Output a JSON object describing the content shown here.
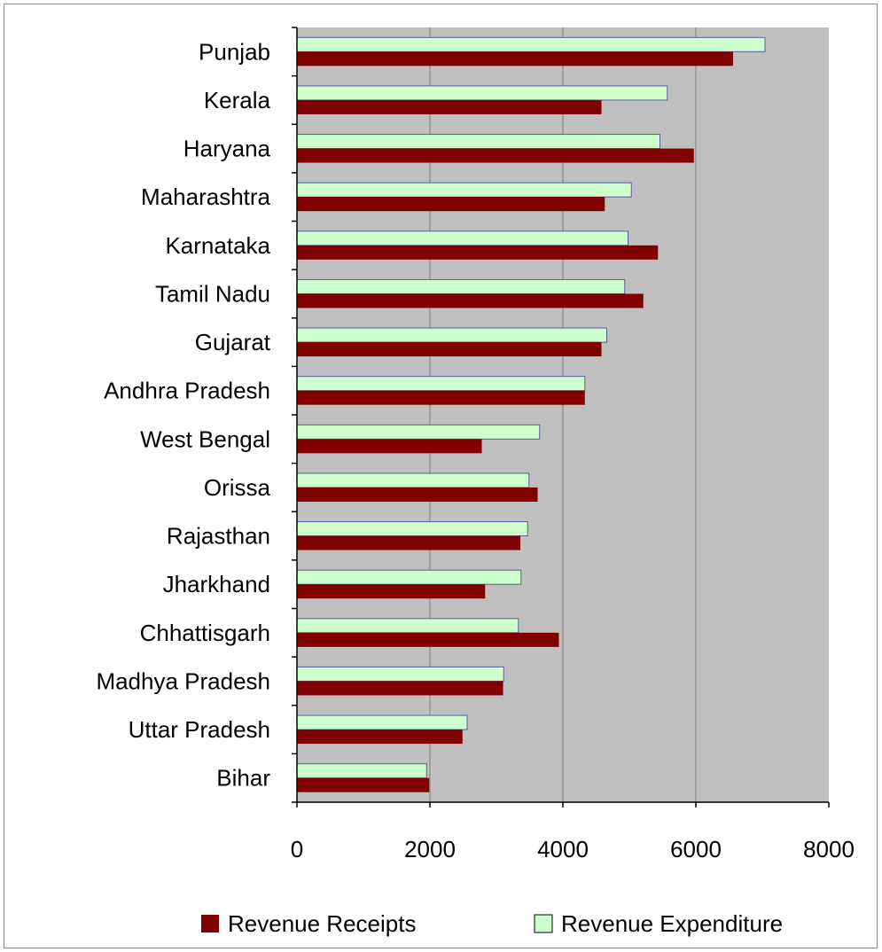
{
  "chart_data": {
    "type": "bar",
    "orientation": "horizontal",
    "categories": [
      "Punjab",
      "Kerala",
      "Haryana",
      "Maharashtra",
      "Karnataka",
      "Tamil Nadu",
      "Gujarat",
      "Andhra Pradesh",
      "West Bengal",
      "Orissa",
      "Rajasthan",
      "Jharkhand",
      "Chhattisgarh",
      "Madhya Pradesh",
      "Uttar Pradesh",
      "Bihar"
    ],
    "series": [
      {
        "name": "Revenue Receipts",
        "color": "#800000",
        "values": [
          6560,
          4580,
          5970,
          4630,
          5430,
          5210,
          4580,
          4330,
          2780,
          3620,
          3360,
          2830,
          3940,
          3100,
          2490,
          1990
        ]
      },
      {
        "name": "Revenue Expenditure",
        "color": "#ccffcc",
        "values": [
          7040,
          5570,
          5460,
          5030,
          4980,
          4930,
          4660,
          4330,
          3650,
          3490,
          3470,
          3370,
          3330,
          3110,
          2560,
          1950
        ]
      }
    ],
    "xlim": [
      0,
      8000
    ],
    "xticks": [
      "0",
      "2000",
      "4000",
      "6000",
      "8000"
    ],
    "grid": "vertical",
    "plot_background": "#c0c0c0",
    "legend_position": "bottom"
  }
}
